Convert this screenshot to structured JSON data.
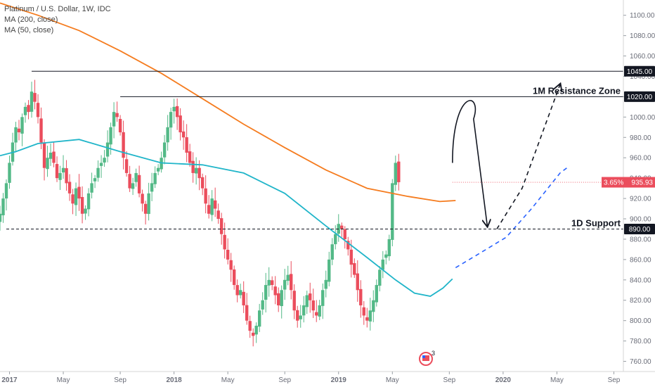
{
  "legend": {
    "title": "Platinum / U.S. Dollar, 1W, IDC",
    "ma200": "MA (200, close)",
    "ma50": "MA (50, close)"
  },
  "colors": {
    "up": "#53b987",
    "down": "#eb4d5c",
    "ma200": "#f57c1f",
    "ma50": "#20b5c9",
    "projection": "#2962ff",
    "level": "#131722",
    "price_line": "#eb4d5c"
  },
  "annotations": {
    "resistance_text": "1M Resistance Zone",
    "support_text": "1D Support",
    "change_label": "3.65%",
    "price_label": "935.93"
  },
  "event_badge": {
    "icon": "us-flag-icon",
    "count": "3"
  },
  "chart_data": {
    "type": "candlestick",
    "title": "Platinum / U.S. Dollar, 1W, IDC",
    "xlabel": "",
    "ylabel": "",
    "ylim": [
      750,
      1115
    ],
    "x_range": [
      "2016-12-12",
      "2020-11-30"
    ],
    "grid": false,
    "x_ticks": [
      {
        "label": "2017",
        "date": "2017-01-02"
      },
      {
        "label": "May",
        "date": "2017-05-01"
      },
      {
        "label": "Sep",
        "date": "2017-09-04"
      },
      {
        "label": "2018",
        "date": "2018-01-01"
      },
      {
        "label": "May",
        "date": "2018-04-30"
      },
      {
        "label": "Sep",
        "date": "2018-09-03"
      },
      {
        "label": "2019",
        "date": "2018-12-31"
      },
      {
        "label": "May",
        "date": "2019-04-29"
      },
      {
        "label": "Sep",
        "date": "2019-09-02"
      },
      {
        "label": "2020",
        "date": "2019-12-30"
      },
      {
        "label": "May",
        "date": "2020-04-27"
      },
      {
        "label": "Sep",
        "date": "2020-08-31"
      }
    ],
    "y_ticks": [
      760,
      780,
      800,
      820,
      840,
      860,
      880,
      900,
      920,
      940,
      960,
      980,
      1000,
      1020,
      1040,
      1060,
      1080,
      1100
    ],
    "y_tick_labels": [
      "760.00",
      "780.00",
      "800.00",
      "820.00",
      "840.00",
      "860.00",
      "880.00",
      "900.00",
      "920.00",
      "940.00",
      "960.00",
      "980.00",
      "1000.00",
      "1020.00",
      "1040.00",
      "1060.00",
      "1080.00",
      "1100.00"
    ],
    "candles_weekly_close": [
      {
        "start": "2016-12-12",
        "closes": [
          905,
          920,
          935,
          955,
          975,
          990,
          985,
          1000,
          1010,
          1005,
          1025,
          1015,
          1000,
          975,
          950,
          960,
          965,
          955,
          940,
          945,
          950,
          935,
          925,
          915,
          930,
          920,
          905,
          910,
          925,
          935,
          940,
          950,
          955,
          960,
          975,
          990,
          1005,
          1000,
          985,
          960,
          945,
          930,
          935,
          945,
          925,
          915,
          905,
          925,
          935,
          945,
          950,
          960,
          975,
          990,
          1005,
          1010,
          1000,
          985,
          980,
          965,
          955,
          945,
          950,
          940,
          930,
          915,
          905,
          920,
          910,
          900,
          885,
          870,
          860,
          850,
          835,
          825,
          830,
          815,
          800,
          790,
          785,
          795,
          810,
          820,
          835,
          840,
          835,
          825,
          815,
          830,
          840,
          845,
          830,
          810,
          800,
          805,
          815,
          825,
          820,
          810,
          805,
          815,
          830,
          840,
          860,
          875,
          885,
          895,
          890,
          880,
          870,
          855,
          845,
          830,
          815,
          805,
          800,
          810,
          820,
          835,
          850,
          860,
          865,
          880,
          935,
          955,
          936
        ]
      }
    ],
    "levels": [
      {
        "value": 1045,
        "label": "1045.00",
        "start": "2017-02-20"
      },
      {
        "value": 1020,
        "label": "1020.00",
        "start": "2017-09-04",
        "text": "1M Resistance Zone"
      },
      {
        "value": 890,
        "label": "890.00",
        "start": "2016-12-26",
        "text": "1D Support",
        "style": "dashed"
      }
    ],
    "current_price": {
      "value": 935.93,
      "change": "3.65%"
    },
    "series": [
      {
        "kind": "ma",
        "points": [
          [
            "2016-12-12",
            1112
          ],
          [
            "2017-03-06",
            1100
          ],
          [
            "2017-06-05",
            1085
          ],
          [
            "2017-09-04",
            1065
          ],
          [
            "2017-12-04",
            1043
          ],
          [
            "2018-03-05",
            1018
          ],
          [
            "2018-06-04",
            993
          ],
          [
            "2018-09-03",
            970
          ],
          [
            "2018-12-03",
            948
          ],
          [
            "2019-03-04",
            930
          ],
          [
            "2019-06-03",
            922
          ],
          [
            "2019-08-12",
            917
          ],
          [
            "2019-09-16",
            918
          ]
        ]
      },
      {
        "kind": "ma",
        "points": [
          [
            "2016-12-12",
            962
          ],
          [
            "2017-01-16",
            966
          ],
          [
            "2017-03-06",
            974
          ],
          [
            "2017-06-05",
            978
          ],
          [
            "2017-09-04",
            966
          ],
          [
            "2017-12-04",
            955
          ],
          [
            "2018-03-05",
            953
          ],
          [
            "2018-06-04",
            945
          ],
          [
            "2018-09-03",
            925
          ],
          [
            "2018-12-03",
            893
          ],
          [
            "2019-03-04",
            862
          ],
          [
            "2019-05-06",
            840
          ],
          [
            "2019-06-17",
            827
          ],
          [
            "2019-07-22",
            824
          ],
          [
            "2019-08-19",
            832
          ],
          [
            "2019-09-09",
            841
          ]
        ]
      },
      {
        "kind": "projection",
        "style": "dashed",
        "points": [
          [
            "2019-09-16",
            852
          ],
          [
            "2019-11-04",
            865
          ],
          [
            "2020-01-06",
            882
          ],
          [
            "2020-03-02",
            910
          ],
          [
            "2020-05-04",
            945
          ],
          [
            "2020-05-25",
            952
          ]
        ]
      }
    ],
    "drawn_path": {
      "arc": [
        [
          "2019-09-09",
          955
        ],
        [
          "2019-10-07",
          1005
        ],
        [
          "2019-11-25",
          893
        ]
      ],
      "dashed_rise": [
        [
          "2019-12-16",
          890
        ],
        [
          "2020-02-10",
          930
        ],
        [
          "2020-04-20",
          1015
        ],
        [
          "2020-05-04",
          1032
        ]
      ]
    }
  }
}
